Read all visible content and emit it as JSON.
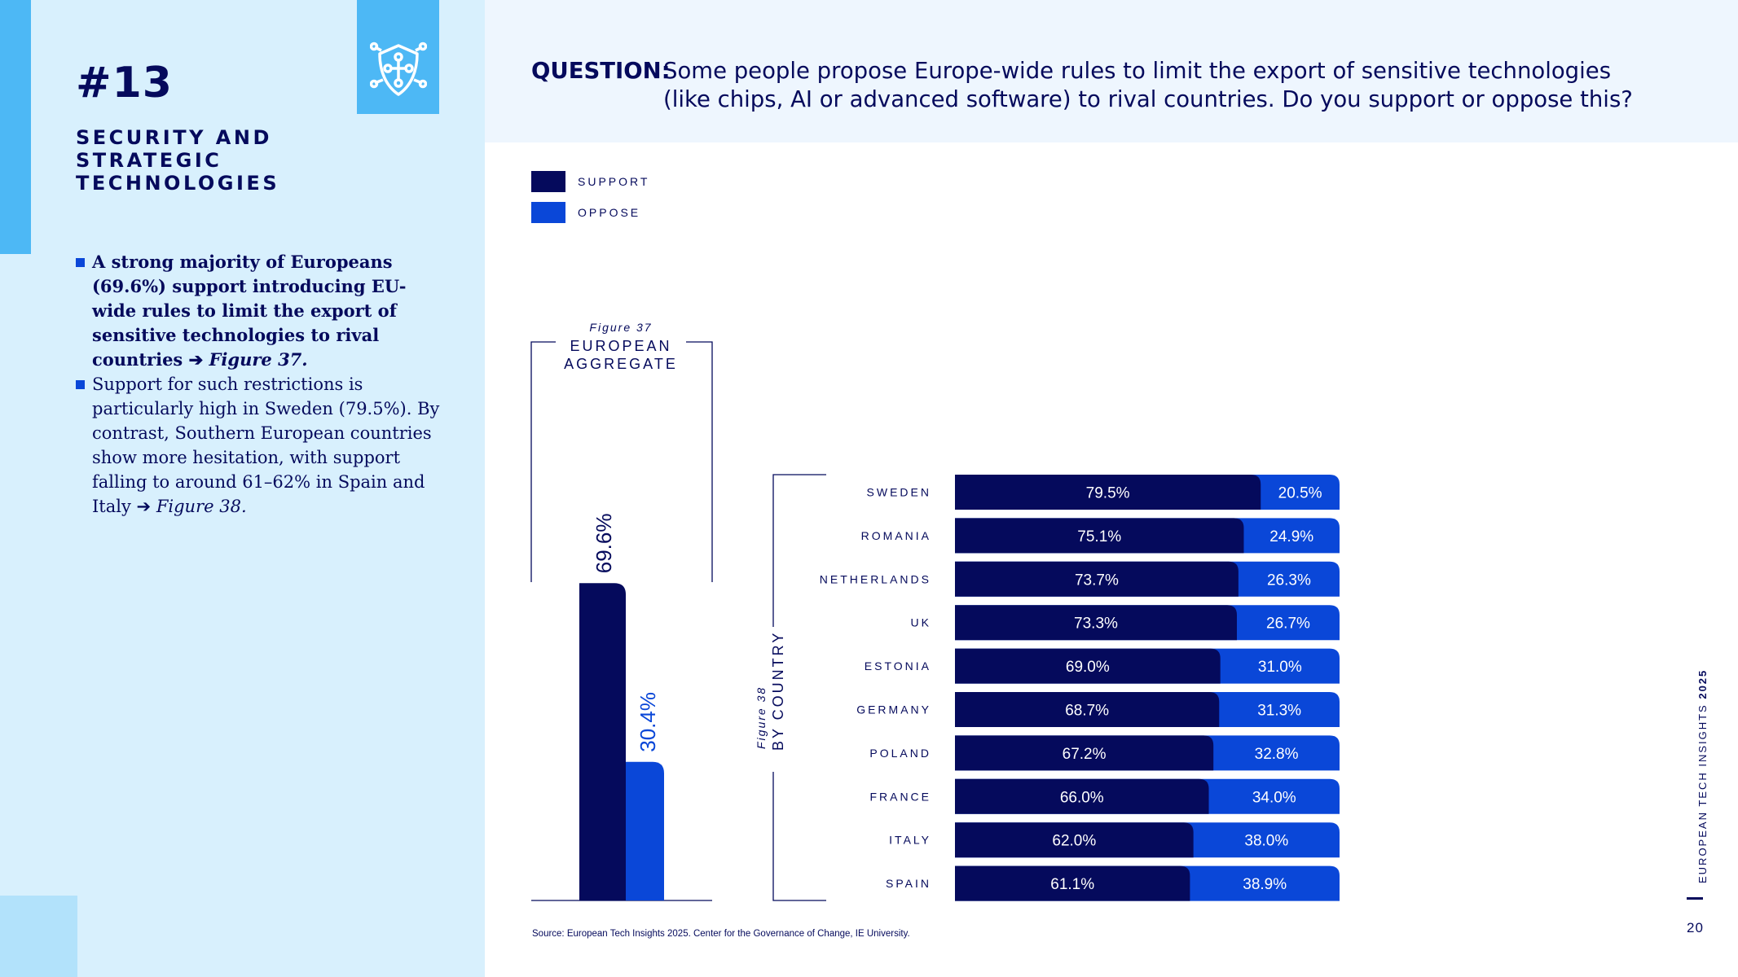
{
  "section": {
    "number": "#13",
    "title": "SECURITY AND STRATEGIC TECHNOLOGIES"
  },
  "bullets": [
    {
      "text": "A strong majority of Europeans (69.6%) support introducing EU-wide rules to limit the export of sensitive technologies to rival countries",
      "ref": "Figure 37."
    },
    {
      "text": "Support for such restrictions is particularly high in Sweden (79.5%). By contrast, Southern European countries show more hesitation, with support falling to around 61–62% in Spain and Italy",
      "ref": "Figure 38."
    }
  ],
  "question": {
    "label": "QUESTION:",
    "text": "Some people propose Europe-wide rules to limit the export of sensitive technologies (like chips, AI or advanced software) to rival countries. Do you support or oppose this?"
  },
  "legend": [
    {
      "label": "SUPPORT",
      "color": "#050a5c"
    },
    {
      "label": "OPPOSE",
      "color": "#0a47d8"
    }
  ],
  "figure37": {
    "caption": "Figure 37",
    "title_line1": "EUROPEAN",
    "title_line2": "AGGREGATE"
  },
  "figure38": {
    "caption": "Figure 38",
    "title": "BY COUNTRY"
  },
  "colors": {
    "support": "#050a5c",
    "oppose": "#0a47d8",
    "accent": "#4db8f5"
  },
  "icon": "shield-circuit-icon",
  "chart_data": [
    {
      "type": "bar",
      "categories": [
        "EUROPEAN AGGREGATE"
      ],
      "series": [
        {
          "name": "SUPPORT",
          "values": [
            69.6
          ]
        },
        {
          "name": "OPPOSE",
          "values": [
            30.4
          ]
        }
      ],
      "ylim": [
        0,
        100
      ]
    },
    {
      "type": "bar",
      "orientation": "horizontal",
      "stacked": true,
      "categories": [
        "SWEDEN",
        "ROMANIA",
        "NETHERLANDS",
        "UK",
        "ESTONIA",
        "GERMANY",
        "POLAND",
        "FRANCE",
        "ITALY",
        "SPAIN"
      ],
      "series": [
        {
          "name": "SUPPORT",
          "values": [
            79.5,
            75.1,
            73.7,
            73.3,
            69.0,
            68.7,
            67.2,
            66.0,
            62.0,
            61.1
          ]
        },
        {
          "name": "OPPOSE",
          "values": [
            20.5,
            24.9,
            26.3,
            26.7,
            31.0,
            31.3,
            32.8,
            34.0,
            38.0,
            38.9
          ]
        }
      ],
      "xlim": [
        0,
        100
      ]
    }
  ],
  "source": "Source: European Tech Insights 2025. Center for the Governance of Change, IE University.",
  "side_label": {
    "text": "EUROPEAN TECH INSIGHTS ",
    "year": "2025"
  },
  "page_number": "20"
}
